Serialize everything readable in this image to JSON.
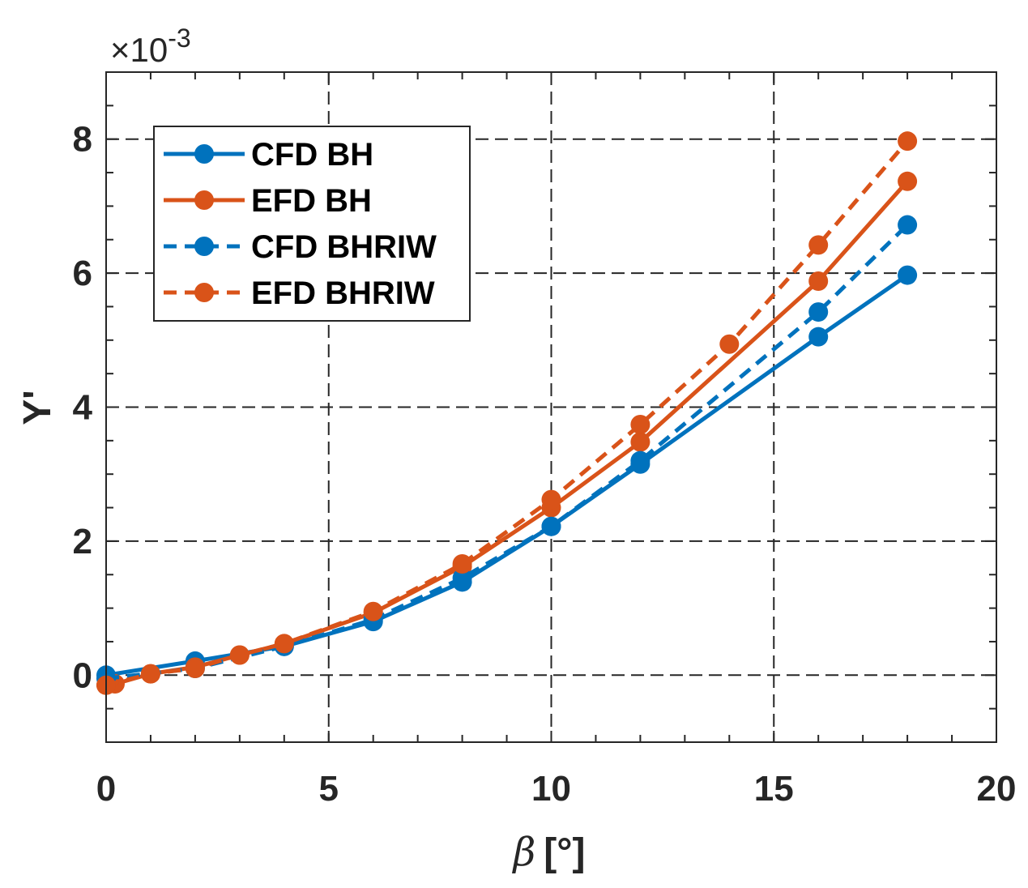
{
  "chart_data": {
    "type": "line",
    "title": "",
    "xlabel": "[°]",
    "xlabel_symbol": "β",
    "ylabel": "Y'",
    "y_exponent": "×10",
    "y_exponent_power": "-3",
    "xlim": [
      0,
      20
    ],
    "ylim": [
      -1,
      9
    ],
    "x_ticks": [
      0,
      5,
      10,
      15,
      20
    ],
    "y_ticks": [
      0,
      2,
      4,
      6,
      8
    ],
    "x_tick_labels": [
      "0",
      "5",
      "10",
      "15",
      "20"
    ],
    "y_tick_labels": [
      "0",
      "2",
      "4",
      "6",
      "8"
    ],
    "grid": true,
    "legend_position": "top-left",
    "series": [
      {
        "name": "CFD BH",
        "color": "#0072BD",
        "line_style": "solid",
        "x": [
          0,
          2,
          4,
          6,
          8,
          10,
          12,
          16,
          18
        ],
        "y": [
          0.0,
          0.21,
          0.43,
          0.8,
          1.39,
          2.22,
          3.15,
          5.05,
          5.97
        ]
      },
      {
        "name": "EFD BH",
        "color": "#D95319",
        "line_style": "solid",
        "x": [
          0,
          0.2,
          1,
          2,
          3,
          4,
          6,
          8,
          10,
          12,
          16,
          18
        ],
        "y": [
          -0.15,
          -0.13,
          0.02,
          0.12,
          0.3,
          0.47,
          0.93,
          1.62,
          2.5,
          3.48,
          5.88,
          7.37
        ]
      },
      {
        "name": "CFD BHRIW",
        "color": "#0072BD",
        "line_style": "dashed",
        "x": [
          0,
          2,
          4,
          6,
          8,
          10,
          12,
          16,
          18
        ],
        "y": [
          -0.05,
          0.1,
          0.43,
          0.83,
          1.45,
          2.22,
          3.2,
          5.42,
          6.72
        ]
      },
      {
        "name": "EFD BHRIW",
        "color": "#D95319",
        "line_style": "dashed",
        "x": [
          0,
          1,
          2,
          3,
          4,
          6,
          8,
          10,
          12,
          14,
          16,
          18
        ],
        "y": [
          -0.15,
          0.02,
          0.1,
          0.3,
          0.47,
          0.95,
          1.66,
          2.62,
          3.74,
          4.94,
          6.42,
          7.97
        ]
      }
    ]
  }
}
